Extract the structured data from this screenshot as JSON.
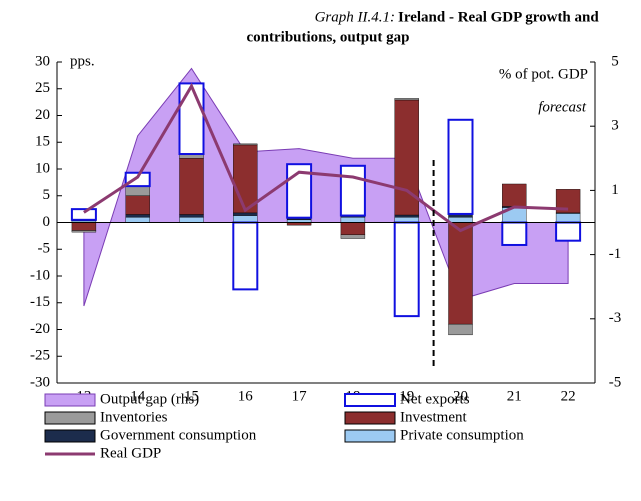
{
  "chart_data": {
    "type": "combo",
    "title_prefix": "Graph II.4.1:",
    "title": [
      "Ireland - Real GDP growth and",
      "contributions, output gap"
    ],
    "y_label": "pps.",
    "y2_label": "% of pot. GDP",
    "annotation": "forecast",
    "categories": [
      "13",
      "14",
      "15",
      "16",
      "17",
      "18",
      "19",
      "20",
      "21",
      "22"
    ],
    "ylim": [
      -30,
      30
    ],
    "yticks": [
      -30,
      -25,
      -20,
      -15,
      -10,
      -5,
      0,
      5,
      10,
      15,
      20,
      25,
      30
    ],
    "y2lim": [
      -5,
      5
    ],
    "y2ticks": [
      -5,
      -3,
      -1,
      1,
      3,
      5
    ],
    "series": [
      {
        "name": "Output gap (rhs)",
        "type": "area",
        "axis": "y2",
        "color": "#c8a0f4",
        "values": [
          -2.6,
          2.7,
          4.8,
          2.2,
          2.3,
          2.0,
          2.0,
          -2.4,
          -1.9,
          -1.9
        ]
      },
      {
        "name": "Net exports",
        "type": "bar",
        "color": "#ffffff",
        "values": [
          2.0,
          2.5,
          13.2,
          -12.5,
          10.0,
          9.3,
          -17.5,
          17.6,
          -4.2,
          -3.4
        ]
      },
      {
        "name": "Inventories",
        "type": "bar",
        "color": "#9a9a9a",
        "values": [
          -0.3,
          1.8,
          0.8,
          0.2,
          0,
          -0.7,
          0.3,
          -2.0,
          0,
          0
        ]
      },
      {
        "name": "Investment",
        "type": "bar",
        "color": "#8c2e2e",
        "values": [
          -1.5,
          3.5,
          10.5,
          12.7,
          -0.5,
          -2.3,
          21.5,
          -19.0,
          4.2,
          4.4
        ]
      },
      {
        "name": "Government consumption",
        "type": "bar",
        "color": "#1c2c4c",
        "values": [
          0.2,
          0.5,
          0.5,
          0.5,
          0.4,
          0.3,
          0.4,
          0.6,
          0.2,
          0.1
        ]
      },
      {
        "name": "Private consumption",
        "type": "bar",
        "color": "#9ccaf2",
        "values": [
          0.3,
          1.0,
          1.0,
          1.3,
          0.5,
          1.0,
          1.0,
          1.0,
          2.8,
          1.7
        ]
      },
      {
        "name": "Real GDP",
        "type": "line",
        "color": "#8c3a70",
        "values": [
          1.9,
          8.5,
          25.5,
          2.3,
          9.4,
          8.5,
          6.0,
          -1.5,
          2.9,
          2.5
        ]
      }
    ]
  }
}
